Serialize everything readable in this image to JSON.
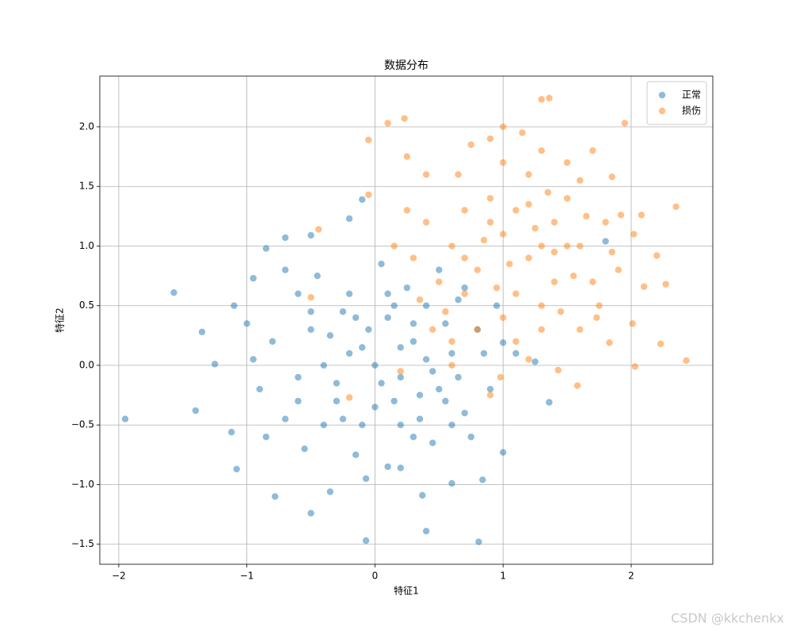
{
  "chart_data": {
    "type": "scatter",
    "title": "数据分布",
    "x_label": "特征1",
    "y_label": "特征2",
    "watermark": "CSDN @kkchenkx",
    "xlim": [
      -2.148,
      2.637
    ],
    "ylim": [
      -1.668,
      2.425
    ],
    "xticks": [
      {
        "value": -2,
        "label": "−2"
      },
      {
        "value": -1,
        "label": "−1"
      },
      0,
      1,
      2
    ],
    "yticks": [
      {
        "value": -1.5,
        "label": "−1.5"
      },
      {
        "value": -1.0,
        "label": "−1.0"
      },
      {
        "value": -0.5,
        "label": "−0.5"
      },
      {
        "value": 0,
        "label": "0.0"
      },
      {
        "value": 0.5,
        "label": "0.5"
      },
      {
        "value": 1.0,
        "label": "1.0"
      },
      {
        "value": 1.5,
        "label": "1.5"
      },
      {
        "value": 2.0,
        "label": "2.0"
      }
    ],
    "grid": true,
    "legend_position": "upper-right",
    "alpha": 0.5,
    "series": [
      {
        "name": "正常",
        "color": "#1f77b4",
        "x": [
          -1.95,
          -1.57,
          -0.07,
          0.81,
          0.4,
          -0.5,
          1.36,
          1.8,
          -0.1,
          -0.2,
          -0.7,
          -0.5,
          -0.85,
          -1.35,
          -1.25,
          -1.4,
          -1.12,
          -1.08,
          -0.78,
          0.37,
          0.6,
          0.84,
          1.0,
          -1.1,
          -0.95,
          1.25,
          1.0,
          -0.35,
          0.2,
          -0.07,
          0.0,
          0.2,
          -0.2,
          0.3,
          -0.3,
          0.1,
          0.5,
          -0.5,
          0.4,
          -0.1,
          0.6,
          -0.6,
          0.15,
          -0.4,
          0.7,
          0.25,
          -0.25,
          0.05,
          -0.6,
          0.45,
          -0.15,
          0.8,
          -0.8,
          0.35,
          -0.35,
          0.55,
          -0.7,
          0.9,
          -0.9,
          0.1,
          -0.45,
          0.65,
          0.75,
          -0.05,
          0.2,
          -0.3,
          0.4,
          0.0,
          -0.55,
          0.3,
          0.6,
          0.5,
          -0.7,
          -0.2,
          0.85,
          -0.85,
          0.15,
          -0.1,
          0.45,
          -0.4,
          0.95,
          1.1,
          -1.0,
          0.7,
          0.3,
          -0.6,
          0.05,
          0.35,
          -0.25,
          0.55,
          -0.95,
          0.2,
          -0.15,
          0.65,
          -0.5,
          0.1
        ],
        "y": [
          -0.45,
          0.61,
          -1.47,
          -1.48,
          -1.39,
          -1.24,
          -0.31,
          1.04,
          1.39,
          1.23,
          1.07,
          1.09,
          0.98,
          0.28,
          0.01,
          -0.38,
          -0.56,
          -0.87,
          -1.1,
          -1.09,
          -0.99,
          -0.96,
          -0.73,
          0.5,
          0.73,
          0.03,
          0.19,
          -1.06,
          -0.86,
          -0.95,
          0.0,
          -0.1,
          0.1,
          0.2,
          -0.3,
          0.4,
          -0.2,
          0.3,
          0.5,
          -0.5,
          0.1,
          -0.1,
          -0.3,
          -0.5,
          -0.4,
          0.65,
          0.45,
          0.85,
          0.6,
          -0.65,
          -0.75,
          0.3,
          0.2,
          -0.45,
          0.25,
          0.35,
          -0.45,
          -0.2,
          -0.2,
          -0.85,
          0.75,
          0.55,
          -0.6,
          0.3,
          0.15,
          -0.15,
          0.05,
          -0.35,
          -0.7,
          -0.6,
          -0.5,
          0.8,
          0.8,
          0.6,
          0.1,
          -0.6,
          0.5,
          0.15,
          -0.05,
          0.0,
          0.5,
          0.1,
          0.35,
          0.65,
          0.35,
          -0.3,
          -0.15,
          -0.25,
          -0.45,
          -0.3,
          0.05,
          -0.5,
          0.4,
          -0.1,
          0.45,
          0.6
        ]
      },
      {
        "name": "损伤",
        "color": "#ff7f0e",
        "x": [
          -0.05,
          0.1,
          0.23,
          1.3,
          1.36,
          1.95,
          2.43,
          2.35,
          2.27,
          2.2,
          2.1,
          2.03,
          2.01,
          2.23,
          1.58,
          1.43,
          0.98,
          0.9,
          0.6,
          0.2,
          -0.44,
          -0.5,
          -0.05,
          0.25,
          2.02,
          2.08,
          1.92,
          1.85,
          1.73,
          1.83,
          -0.2,
          1.2,
          1.0,
          1.4,
          0.8,
          1.6,
          1.1,
          1.3,
          0.9,
          1.5,
          0.7,
          1.7,
          1.2,
          1.0,
          1.4,
          0.6,
          1.8,
          0.5,
          1.3,
          1.1,
          1.6,
          0.4,
          0.9,
          1.5,
          0.3,
          1.9,
          0.8,
          1.2,
          1.0,
          1.4,
          0.7,
          1.6,
          0.55,
          1.75,
          0.45,
          1.25,
          0.95,
          1.45,
          0.65,
          1.05,
          1.35,
          0.85,
          1.55,
          0.35,
          1.15,
          0.75,
          1.65,
          0.25,
          1.85,
          0.6,
          1.3,
          1.0,
          1.7,
          0.15,
          0.4,
          1.5,
          1.1,
          0.9,
          1.3,
          1.2,
          0.7
        ],
        "y": [
          1.89,
          2.03,
          2.07,
          2.23,
          2.24,
          2.03,
          0.04,
          1.33,
          0.68,
          0.92,
          0.66,
          -0.01,
          0.35,
          0.18,
          -0.17,
          -0.04,
          -0.1,
          -0.25,
          0.0,
          -0.05,
          1.14,
          0.57,
          1.43,
          1.75,
          1.1,
          1.26,
          1.26,
          1.58,
          0.4,
          0.19,
          -0.27,
          0.9,
          1.1,
          0.7,
          0.8,
          1.0,
          1.3,
          0.5,
          1.4,
          1.4,
          0.6,
          0.7,
          1.6,
          0.4,
          1.2,
          1.0,
          1.2,
          0.7,
          1.8,
          0.2,
          0.3,
          1.2,
          1.9,
          1.7,
          0.9,
          0.8,
          0.3,
          0.05,
          1.7,
          0.95,
          1.3,
          1.55,
          0.45,
          0.5,
          0.3,
          1.15,
          0.65,
          0.45,
          1.6,
          0.85,
          1.45,
          1.05,
          0.75,
          0.55,
          1.95,
          1.85,
          1.25,
          1.3,
          0.95,
          0.2,
          0.3,
          2.0,
          1.8,
          1.0,
          1.6,
          1.0,
          0.6,
          1.2,
          1.0,
          1.35,
          0.9
        ]
      }
    ]
  }
}
